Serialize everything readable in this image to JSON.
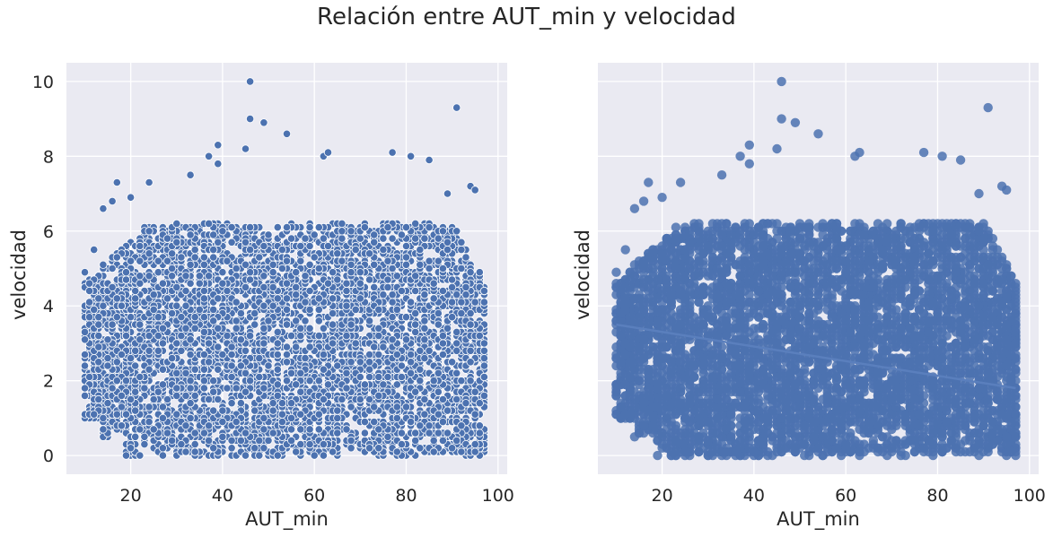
{
  "title": "Relación entre AUT_min y velocidad",
  "colors": {
    "panel_bg": "#eaeaf2",
    "grid": "#ffffff",
    "points": "#4c72b0",
    "text": "#262626"
  },
  "chart_data": [
    {
      "type": "scatter",
      "xlabel": "AUT_min",
      "ylabel": "velocidad",
      "xlim": [
        6,
        102
      ],
      "ylim": [
        -0.5,
        10.5
      ],
      "xticks": [
        20,
        40,
        60,
        80,
        100
      ],
      "yticks": [
        0,
        2,
        4,
        6,
        8,
        10
      ],
      "grid": true,
      "point_style": "filled circles with white edge",
      "bulk_region": {
        "x": [
          10,
          97.5
        ],
        "y": [
          0,
          7
        ]
      },
      "outliers": [
        [
          46,
          10.0
        ],
        [
          91,
          9.3
        ],
        [
          46,
          9.0
        ],
        [
          49,
          8.9
        ],
        [
          54,
          8.6
        ],
        [
          39,
          8.3
        ],
        [
          45,
          8.2
        ],
        [
          37,
          8.0
        ],
        [
          39,
          7.8
        ],
        [
          62,
          8.0
        ],
        [
          63,
          8.1
        ],
        [
          77,
          8.1
        ],
        [
          81,
          8.0
        ],
        [
          85,
          7.9
        ],
        [
          17,
          7.3
        ],
        [
          24,
          7.3
        ],
        [
          33,
          7.5
        ],
        [
          94,
          7.2
        ],
        [
          95,
          7.1
        ],
        [
          89,
          7.0
        ],
        [
          14,
          6.6
        ],
        [
          16,
          6.8
        ],
        [
          20,
          6.9
        ],
        [
          12,
          5.5
        ],
        [
          10,
          4.9
        ],
        [
          10,
          2.7
        ],
        [
          10,
          1.8
        ],
        [
          12,
          1.1
        ],
        [
          19,
          0.0
        ],
        [
          22,
          0.0
        ]
      ]
    },
    {
      "type": "scatter",
      "xlabel": "AUT_min",
      "ylabel": "velocidad",
      "xlim": [
        6,
        102
      ],
      "ylim": [
        -0.5,
        10.5
      ],
      "xticks": [
        20,
        40,
        60,
        80,
        100
      ],
      "yticks": [
        0,
        2,
        4,
        6,
        8,
        10
      ],
      "grid": true,
      "point_style": "larger semi-opaque filled circles",
      "bulk_region": {
        "x": [
          10,
          97.5
        ],
        "y": [
          0,
          7
        ]
      },
      "regression_line": {
        "x": [
          10,
          97
        ],
        "y": [
          3.5,
          1.8
        ]
      },
      "outliers": [
        [
          46,
          10.0
        ],
        [
          91,
          9.3
        ],
        [
          46,
          9.0
        ],
        [
          49,
          8.9
        ],
        [
          54,
          8.6
        ],
        [
          39,
          8.3
        ],
        [
          45,
          8.2
        ],
        [
          37,
          8.0
        ],
        [
          39,
          7.8
        ],
        [
          62,
          8.0
        ],
        [
          63,
          8.1
        ],
        [
          77,
          8.1
        ],
        [
          81,
          8.0
        ],
        [
          85,
          7.9
        ],
        [
          17,
          7.3
        ],
        [
          24,
          7.3
        ],
        [
          33,
          7.5
        ],
        [
          94,
          7.2
        ],
        [
          95,
          7.1
        ],
        [
          89,
          7.0
        ],
        [
          14,
          6.6
        ],
        [
          16,
          6.8
        ],
        [
          20,
          6.9
        ],
        [
          12,
          5.5
        ],
        [
          10,
          4.9
        ],
        [
          10,
          2.7
        ],
        [
          10,
          1.8
        ],
        [
          12,
          1.1
        ],
        [
          19,
          0.0
        ],
        [
          22,
          0.0
        ]
      ]
    }
  ]
}
